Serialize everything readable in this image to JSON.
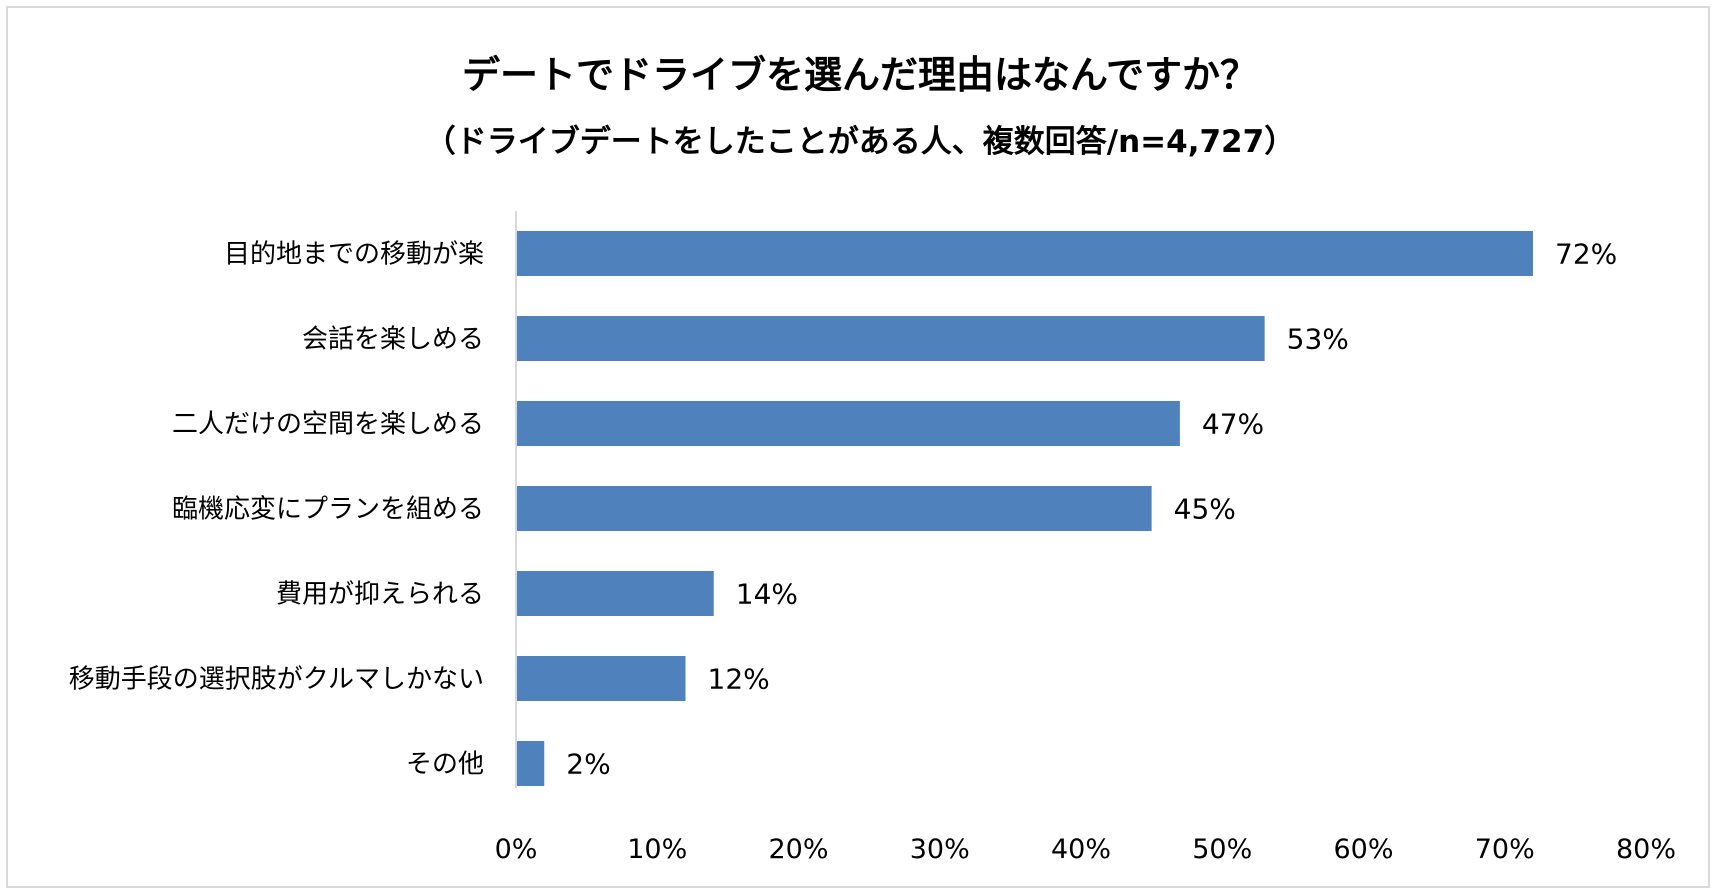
{
  "chart_data": {
    "type": "bar",
    "orientation": "horizontal",
    "title": "デートでドライブを選んだ理由はなんですか？",
    "subtitle": "（ドライブデートをしたことがある人、複数回答/n=4,727）",
    "categories": [
      "目的地までの移動が楽",
      "会話を楽しめる",
      "二人だけの空間を楽しめる",
      "臨機応変にプランを組める",
      "費用が抑えられる",
      "移動手段の選択肢がクルマしかない",
      "その他"
    ],
    "values": [
      72,
      53,
      47,
      45,
      14,
      12,
      2
    ],
    "value_labels": [
      "72%",
      "53%",
      "47%",
      "45%",
      "14%",
      "12%",
      "2%"
    ],
    "xlim": [
      0,
      80
    ],
    "xticks": [
      0,
      10,
      20,
      30,
      40,
      50,
      60,
      70,
      80
    ],
    "xtick_labels": [
      "0%",
      "10%",
      "20%",
      "30%",
      "40%",
      "50%",
      "60%",
      "70%",
      "80%"
    ],
    "grid": false,
    "bar_color": "#4f81bd"
  }
}
